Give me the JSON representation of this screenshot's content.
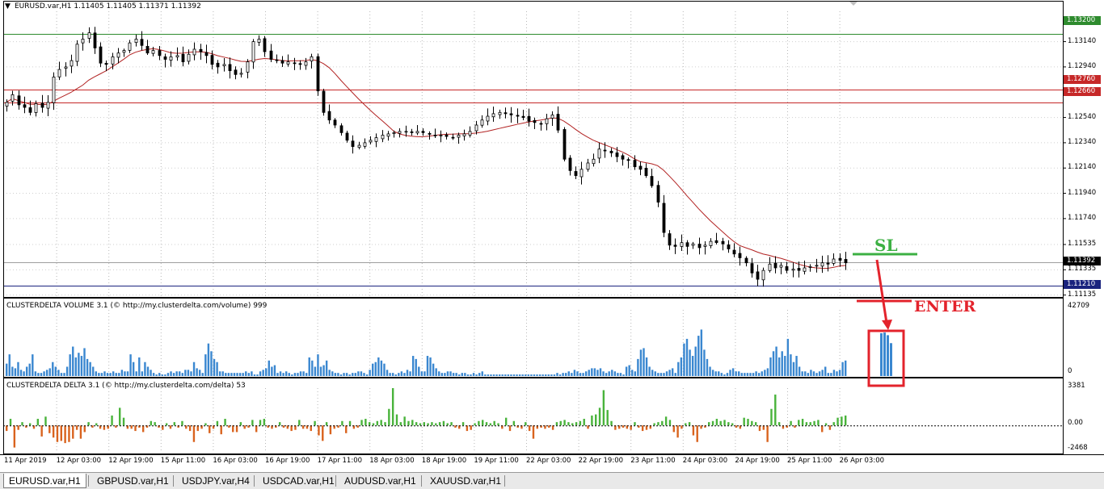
{
  "chart_window": {
    "title": "EURUSD.var,H1  1.11405 1.11405 1.11371 1.11392",
    "menu_icon": "triangle-down-icon"
  },
  "price_axis": {
    "labels": [
      "1.13140",
      "1.12940",
      "1.12540",
      "1.12340",
      "1.12140",
      "1.11940",
      "1.11740",
      "1.11535",
      "1.11335",
      "1.11135"
    ],
    "boxes": {
      "green": "1.13200",
      "red_top": "1.12760",
      "red_bottom": "1.12660",
      "current": "1.11392",
      "blue": "1.11210"
    }
  },
  "indicators": {
    "volume_title": "CLUSTERDELTA VOLUME 3.1 (© http://my.clusterdelta.com/volume) 999",
    "volume_max": "42709",
    "volume_min": "0",
    "delta_title": "CLUSTERDELTA DELTA 3.1 (© http://my.clusterdelta.com/delta) 53",
    "delta_max": "3381",
    "delta_zero": "0.00",
    "delta_min": "-2468"
  },
  "time_axis": [
    "11 Apr 2019",
    "12 Apr 03:00",
    "12 Apr 19:00",
    "15 Apr 11:00",
    "16 Apr 03:00",
    "16 Apr 19:00",
    "17 Apr 11:00",
    "18 Apr 03:00",
    "18 Apr 19:00",
    "19 Apr 11:00",
    "22 Apr 03:00",
    "22 Apr 19:00",
    "23 Apr 11:00",
    "24 Apr 03:00",
    "24 Apr 19:00",
    "25 Apr 11:00",
    "26 Apr 03:00"
  ],
  "annotations": {
    "sl": "SL",
    "enter": "ENTER"
  },
  "tabs": [
    "EURUSD.var,H1",
    "GBPUSD.var,H1",
    "USDJPY.var,H4",
    "USDCAD.var,H1",
    "AUDUSD.var,H1",
    "XAUUSD.var,H1"
  ],
  "colors": {
    "candle": "#000000",
    "ma": "#b22222",
    "green_line": "#2e8b2e",
    "red_line": "#c62828",
    "blue_line": "#1a237e",
    "volume_bar": "#3a87d0",
    "delta_pos": "#49b33b",
    "delta_neg": "#d9631e",
    "annotation_green": "#3cb043",
    "annotation_red": "#e3232c"
  },
  "chart_data": [
    {
      "type": "candlestick",
      "symbol": "EURUSD.var",
      "timeframe": "H1",
      "ohlc_last": {
        "open": 1.11405,
        "high": 1.11405,
        "low": 1.11371,
        "close": 1.11392
      },
      "ylim": [
        1.1112,
        1.1338
      ],
      "close_series": [
        1.1266,
        1.1272,
        1.1264,
        1.1262,
        1.1258,
        1.1265,
        1.1262,
        1.1266,
        1.1286,
        1.1292,
        1.1294,
        1.1299,
        1.1312,
        1.1316,
        1.1321,
        1.1309,
        1.1297,
        1.1296,
        1.1302,
        1.1305,
        1.1307,
        1.1313,
        1.1316,
        1.1311,
        1.1305,
        1.1307,
        1.1303,
        1.13,
        1.1302,
        1.1303,
        1.1298,
        1.1304,
        1.1308,
        1.1306,
        1.1303,
        1.1296,
        1.1294,
        1.1296,
        1.1291,
        1.1288,
        1.1289,
        1.1298,
        1.1314,
        1.1316,
        1.1306,
        1.13,
        1.1299,
        1.1297,
        1.1298,
        1.1297,
        1.1296,
        1.1298,
        1.1302,
        1.1275,
        1.1258,
        1.1252,
        1.1248,
        1.1242,
        1.1236,
        1.1231,
        1.1232,
        1.1234,
        1.1236,
        1.1238,
        1.124,
        1.1241,
        1.1242,
        1.1243,
        1.1243,
        1.1242,
        1.1243,
        1.1242,
        1.1241,
        1.124,
        1.124,
        1.1239,
        1.1238,
        1.124,
        1.1241,
        1.1243,
        1.1248,
        1.1252,
        1.1255,
        1.1257,
        1.1258,
        1.1257,
        1.1256,
        1.1255,
        1.1254,
        1.1251,
        1.125,
        1.1249,
        1.1253,
        1.1256,
        1.1244,
        1.1221,
        1.1212,
        1.1208,
        1.1213,
        1.1218,
        1.1221,
        1.1229,
        1.1228,
        1.1226,
        1.1223,
        1.1221,
        1.122,
        1.1215,
        1.1213,
        1.1208,
        1.12,
        1.1187,
        1.1163,
        1.1153,
        1.1152,
        1.1155,
        1.1152,
        1.1154,
        1.1151,
        1.1153,
        1.1156,
        1.1155,
        1.1154,
        1.115,
        1.1146,
        1.1143,
        1.1139,
        1.1131,
        1.1126,
        1.1133,
        1.1138,
        1.1135,
        1.1137,
        1.1133,
        1.1134,
        1.1133,
        1.1135,
        1.1136,
        1.1137,
        1.1139,
        1.1138,
        1.1142,
        1.1141,
        1.1139
      ],
      "moving_average_line": true,
      "horizontal_levels": [
        {
          "price": 1.132,
          "color": "green"
        },
        {
          "price": 1.1276,
          "color": "red"
        },
        {
          "price": 1.1266,
          "color": "red"
        },
        {
          "price": 1.11392,
          "color": "gray"
        },
        {
          "price": 1.1121,
          "color": "blue"
        }
      ]
    },
    {
      "type": "bar",
      "title": "CLUSTERDELTA VOLUME 3.1 (© http://my.clusterdelta.com/volume) 999",
      "ylim": [
        0,
        42709
      ],
      "values": [
        8000,
        14000,
        6000,
        5000,
        9000,
        4000,
        3000,
        6000,
        8000,
        14000,
        3000,
        2000,
        2000,
        3000,
        4000,
        5000,
        9000,
        6000,
        4000,
        2000,
        2000,
        6000,
        14000,
        19000,
        12000,
        15000,
        13000,
        18000,
        11000,
        9000,
        6000,
        3000,
        2000,
        2000,
        3000,
        2000,
        2000,
        3000,
        2000,
        2000,
        4000,
        3000,
        3000,
        14000,
        9000,
        3000,
        12000,
        3000,
        9000,
        6000,
        4000,
        2000,
        1000,
        2000,
        1000,
        1000,
        2000,
        3000,
        2000,
        3000,
        3000,
        2000,
        4000,
        4000,
        3000,
        9000,
        5000,
        4000,
        2000,
        14000,
        21000,
        16000,
        11000,
        9000,
        3000,
        3000,
        2000,
        2000,
        2000,
        2000,
        2000,
        2000,
        2000,
        3000,
        2000,
        3000,
        1000,
        1000,
        3000,
        4000,
        5000,
        10000,
        6000,
        7000,
        2000,
        3000,
        2000,
        3000,
        2000,
        1000,
        2000,
        2000,
        3000,
        3000,
        2000,
        12000,
        10000,
        6000,
        14000,
        6000,
        7000,
        10000,
        4000,
        3000,
        2000,
        2000,
        1000,
        2000,
        2000,
        1000,
        2000,
        2000,
        3000,
        3000,
        2000,
        1000,
        4000,
        8000,
        9000,
        12000,
        10000,
        8000,
        4000,
        2000,
        2000,
        1000,
        2000,
        3000,
        2000,
        4000,
        3000,
        13000,
        11000,
        6000,
        3000,
        3000,
        13000,
        12000,
        8000,
        5000,
        3000,
        2000,
        2000,
        3000,
        3000,
        2000,
        2000,
        1000,
        2000,
        2000,
        1000,
        1000,
        2000,
        1000,
        2000,
        3000,
        1000,
        1000,
        1000,
        1000,
        1000,
        1000,
        1000,
        1000,
        1000,
        1000,
        1000,
        1000,
        1000,
        1000,
        1000,
        1000,
        1000,
        1000,
        1000,
        1000,
        1000,
        1000,
        1000,
        1000,
        1000,
        2000,
        1000,
        2000,
        2000,
        3000,
        2000,
        4000,
        3000,
        2000,
        2000,
        3000,
        4000,
        5000,
        5000,
        4000,
        5000,
        3000,
        2000,
        3000,
        4000,
        3000,
        2000,
        2000,
        1000,
        6000,
        7000,
        4000,
        3000,
        11000,
        17000,
        18000,
        12000,
        6000,
        4000,
        3000,
        2000,
        2000,
        2000,
        3000,
        4000,
        5000,
        2000,
        9000,
        12000,
        21000,
        24000,
        17000,
        13000,
        19000,
        26000,
        30000,
        17000,
        11000,
        6000,
        4000,
        3000,
        3000,
        2000,
        1000,
        2000,
        4000,
        5000,
        3000,
        3000,
        2000,
        2000,
        2000,
        2000,
        2000,
        3000,
        2000,
        3000,
        4000,
        5000,
        12000,
        16000,
        19000,
        12000,
        16000,
        13000,
        24000,
        14000,
        9000,
        13000,
        6000,
        3000,
        3000,
        2000,
        4000,
        3000,
        2000,
        3000,
        4000,
        6000,
        2000,
        2000,
        4000,
        3000,
        4000,
        9000,
        10000
      ]
    },
    {
      "type": "bar",
      "title": "CLUSTERDELTA DELTA 3.1 (© http://my.clusterdelta.com/delta) 53",
      "ylim": [
        -2468,
        3381
      ],
      "values": [
        -500,
        600,
        -2000,
        -400,
        300,
        -200,
        200,
        -300,
        600,
        -1000,
        800,
        -700,
        -1100,
        -1500,
        -1400,
        -1600,
        -1500,
        -1200,
        -400,
        -1200,
        -600,
        300,
        -200,
        200,
        -300,
        -400,
        -300,
        900,
        -200,
        1600,
        700,
        -300,
        -300,
        -500,
        -200,
        -600,
        -200,
        400,
        300,
        -200,
        -400,
        200,
        -300,
        300,
        -200,
        400,
        -300,
        -500,
        -1500,
        -500,
        -300,
        200,
        -700,
        -300,
        400,
        -800,
        600,
        -200,
        -600,
        -600,
        300,
        -300,
        -200,
        500,
        -600,
        500,
        600,
        -200,
        -300,
        -200,
        300,
        -200,
        -300,
        -500,
        -400,
        500,
        -300,
        -300,
        -500,
        400,
        -900,
        -1400,
        300,
        -800,
        -300,
        -200,
        400,
        -700,
        400,
        -300,
        -200,
        500,
        600,
        300,
        200,
        400,
        500,
        300,
        1500,
        3381,
        1000,
        300,
        800,
        400,
        500,
        300,
        200,
        300,
        200,
        300,
        200,
        300,
        400,
        200,
        300,
        -200,
        -300,
        300,
        -500,
        -400,
        200,
        400,
        500,
        300,
        200,
        400,
        200,
        -300,
        700,
        -500,
        400,
        -200,
        -300,
        300,
        -500,
        -1200,
        -300,
        -200,
        -300,
        -200,
        -400,
        300,
        400,
        500,
        300,
        200,
        300,
        400,
        600,
        -300,
        900,
        1000,
        1600,
        3200,
        1400,
        400,
        -400,
        -300,
        -200,
        -300,
        -400,
        300,
        -200,
        -500,
        -400,
        -300,
        200,
        300,
        400,
        800,
        500,
        -600,
        -1100,
        -300,
        200,
        300,
        -900,
        -1500,
        -300,
        -200,
        300,
        400,
        600,
        400,
        500,
        300,
        200,
        -200,
        -300,
        700,
        600,
        400,
        300,
        -500,
        -400,
        -1500,
        1500,
        2800,
        300,
        -300,
        -200,
        400,
        -200,
        500,
        600,
        300,
        300,
        400,
        500,
        -600,
        200,
        -400,
        300,
        700,
        800,
        900
      ]
    }
  ]
}
